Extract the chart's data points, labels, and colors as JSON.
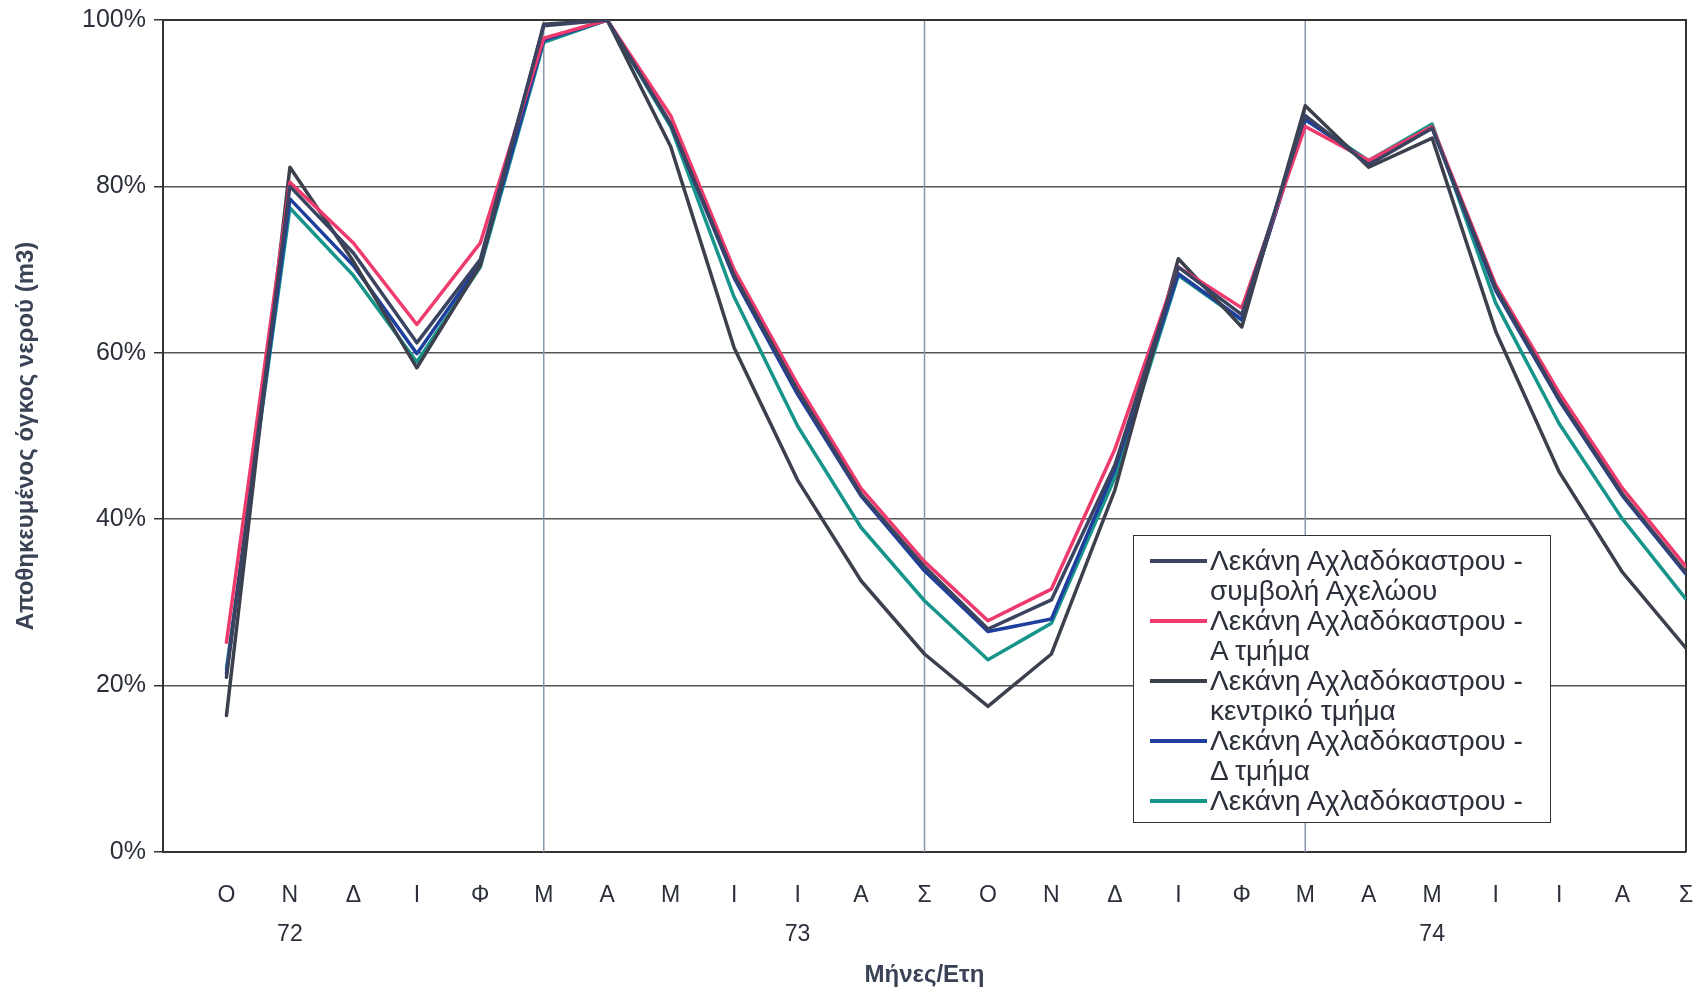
{
  "chart_data": {
    "type": "line",
    "xlabel": "Μήνες/Ετη",
    "ylabel": "Αποθηκευμένος όγκος νερού (m3)",
    "x": [
      "1972-10",
      "1972-11",
      "1972-12",
      "1973-01",
      "1973-02",
      "1973-03",
      "1973-04",
      "1973-05",
      "1973-06",
      "1973-07",
      "1973-08",
      "1973-09",
      "1973-10",
      "1973-11",
      "1973-12",
      "1974-01",
      "1974-02",
      "1974-03",
      "1974-04",
      "1974-05",
      "1974-06",
      "1974-07",
      "1974-08",
      "1974-09"
    ],
    "xlim": [
      "1972-09",
      "1974-09"
    ],
    "xticks": [
      {
        "value": "1972-10",
        "label": "Ο"
      },
      {
        "value": "1972-11",
        "label": "Ν\n72"
      },
      {
        "value": "1972-12",
        "label": "Δ"
      },
      {
        "value": "1973-01",
        "label": "Ι"
      },
      {
        "value": "1973-02",
        "label": "Φ"
      },
      {
        "value": "1973-03",
        "label": "Μ"
      },
      {
        "value": "1973-04",
        "label": "Α"
      },
      {
        "value": "1973-05",
        "label": "Μ"
      },
      {
        "value": "1973-06",
        "label": "Ι"
      },
      {
        "value": "1973-07",
        "label": "Ι\n73"
      },
      {
        "value": "1973-08",
        "label": "Α"
      },
      {
        "value": "1973-09",
        "label": "Σ"
      },
      {
        "value": "1973-10",
        "label": "Ο"
      },
      {
        "value": "1973-11",
        "label": "Ν"
      },
      {
        "value": "1973-12",
        "label": "Δ"
      },
      {
        "value": "1974-01",
        "label": "Ι"
      },
      {
        "value": "1974-02",
        "label": "Φ"
      },
      {
        "value": "1974-03",
        "label": "Μ"
      },
      {
        "value": "1974-04",
        "label": "Α"
      },
      {
        "value": "1974-05",
        "label": "Μ\n74"
      },
      {
        "value": "1974-06",
        "label": "Ι"
      },
      {
        "value": "1974-07",
        "label": "Ι"
      },
      {
        "value": "1974-08",
        "label": "Α"
      },
      {
        "value": "1974-09",
        "label": "Σ"
      }
    ],
    "ylim": [
      0,
      100
    ],
    "yticks": [
      {
        "value": 0,
        "label": "0%"
      },
      {
        "value": 20,
        "label": "20%"
      },
      {
        "value": 40,
        "label": "40%"
      },
      {
        "value": 60,
        "label": "60%"
      },
      {
        "value": 80,
        "label": "80%"
      },
      {
        "value": 100,
        "label": "100%"
      }
    ],
    "grid": "y",
    "ref_lines": [
      {
        "axis": "x",
        "value": "1973-03",
        "color": "#8797ad"
      },
      {
        "axis": "x",
        "value": "1973-09",
        "color": "#8797ad"
      },
      {
        "axis": "x",
        "value": "1974-03",
        "color": "#8797ad"
      }
    ],
    "legend": "bottom right",
    "marker": "none",
    "line_style": "solid",
    "series": [
      {
        "name": "Λεκάνη Αχλαδόκαστρου - συμβολή Αχελώου",
        "color": "#3a4360",
        "values": [
          21,
          80,
          72,
          61.2,
          71.2,
          99.3,
          100,
          87.5,
          69.3,
          55.5,
          43,
          34.3,
          26.8,
          30.3,
          46.5,
          70.3,
          64.6,
          88.5,
          82.6,
          87,
          67.8,
          54.5,
          43,
          33.6
        ]
      },
      {
        "name": "Λεκάνη Αχλαδόκαστρου - Α τμήμα",
        "color": "#ee3a6c",
        "values": [
          25.2,
          80.5,
          73.2,
          63.4,
          73.2,
          97.8,
          100,
          88.5,
          70,
          56.2,
          43.7,
          34.9,
          27.8,
          31.6,
          48.4,
          70.3,
          65.4,
          87.2,
          83.1,
          87.2,
          68.2,
          55.2,
          43.7,
          34.3
        ]
      },
      {
        "name": "Λεκάνη Αχλαδόκαστρου - κεντρικό τμήμα",
        "color": "#3c404d",
        "values": [
          16.4,
          82.3,
          71,
          58.2,
          70.5,
          99.5,
          100,
          84.8,
          60.6,
          44.7,
          32.6,
          23.8,
          17.5,
          23.8,
          43.5,
          71.3,
          63.1,
          89.7,
          82.3,
          85.8,
          62.6,
          45.7,
          33.6,
          24.5
        ]
      },
      {
        "name": "Λεκάνη Αχλαδόκαστρου - Δ τμήμα",
        "color": "#1f3f9e",
        "values": [
          21.5,
          78.5,
          70.5,
          59.9,
          70.8,
          97.6,
          100,
          87.5,
          69,
          55,
          42.8,
          33.8,
          26.5,
          28,
          46,
          69.5,
          64,
          88,
          83,
          87,
          67.5,
          54.3,
          42.8,
          33.4
        ]
      },
      {
        "name": "Λεκάνη Αχλαδόκαστρου -",
        "color": "#17958b",
        "values": [
          22,
          77.4,
          69.3,
          58.9,
          70.3,
          97.3,
          100,
          87.2,
          66.7,
          51.2,
          39,
          30.2,
          23.1,
          27.5,
          45,
          69.3,
          63.9,
          88.2,
          83.1,
          87.5,
          66,
          51.5,
          40,
          30.4
        ]
      }
    ]
  }
}
